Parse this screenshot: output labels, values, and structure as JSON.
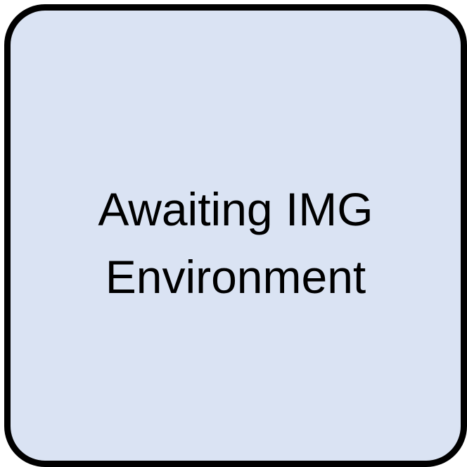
{
  "placeholder": {
    "line1": "Awaiting IMG",
    "line2": "Environment"
  },
  "colors": {
    "background": "#DAE3F3",
    "border": "#000000",
    "text": "#000000"
  }
}
